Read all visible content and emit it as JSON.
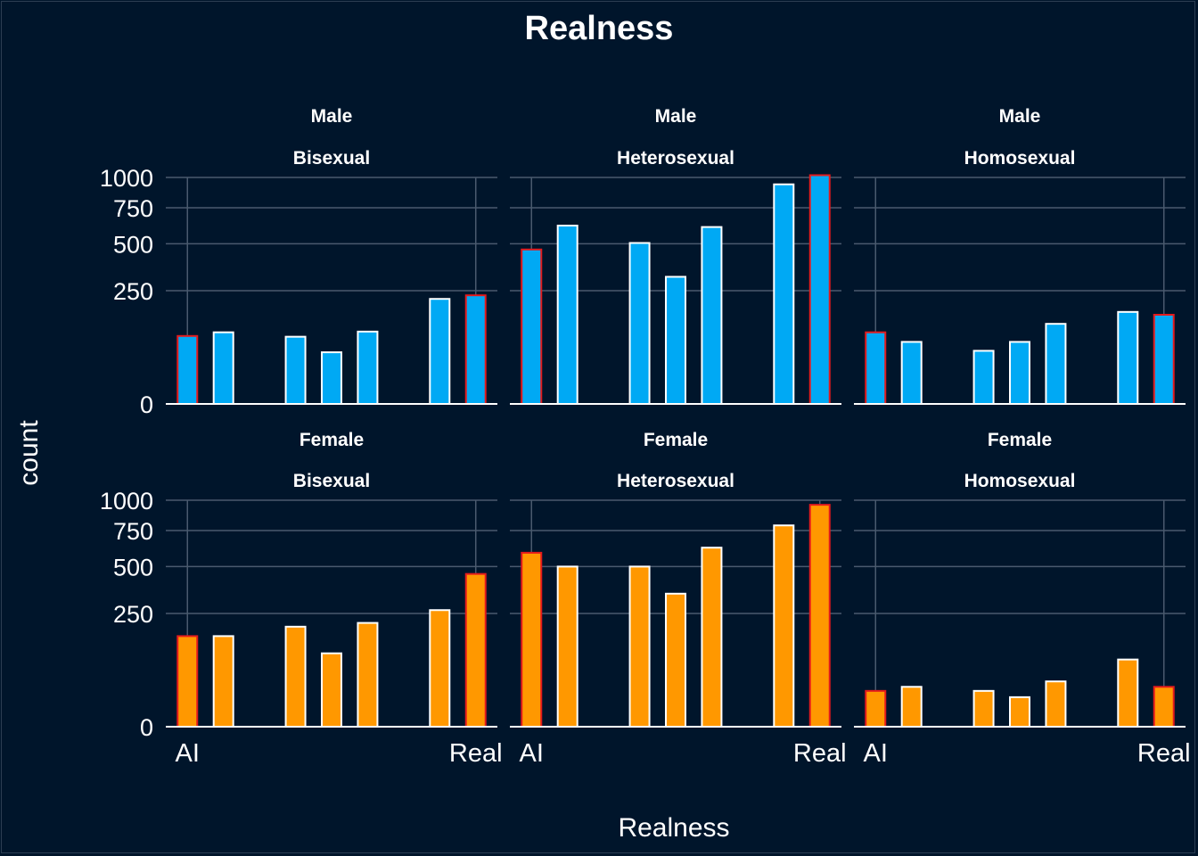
{
  "chart_data": {
    "type": "bar",
    "title": "Realness",
    "xlabel": "Realness",
    "ylabel": "count",
    "y_scale": "sqrt",
    "ylim": [
      0,
      1000
    ],
    "y_ticks": [
      0,
      250,
      500,
      750,
      1000
    ],
    "x_tick_labels": [
      "AI",
      "Real"
    ],
    "x_positions": [
      1,
      2,
      4,
      5,
      6,
      7,
      9,
      10
    ],
    "grid": true,
    "legend": "none",
    "colors": {
      "background": "#00152b",
      "male_fill": "#00a9f4",
      "female_fill": "#ff9800",
      "outline_default": "#ffffff",
      "outline_highlight": "#e41a1c",
      "grid": "#4a5a6e"
    },
    "panels": [
      {
        "gender": "Male",
        "orientation": "Bisexual",
        "bars": [
          {
            "x": 1,
            "value": 90,
            "highlight": true
          },
          {
            "x": 2,
            "value": 100
          },
          {
            "x": 4,
            "value": 88
          },
          {
            "x": 5,
            "value": 52
          },
          {
            "x": 6,
            "value": 102
          },
          {
            "x": 8,
            "value": 215
          },
          {
            "x": 9,
            "value": 230,
            "highlight": true
          }
        ]
      },
      {
        "gender": "Male",
        "orientation": "Heterosexual",
        "bars": [
          {
            "x": 1,
            "value": 465,
            "highlight": true
          },
          {
            "x": 2,
            "value": 620
          },
          {
            "x": 4,
            "value": 505
          },
          {
            "x": 5,
            "value": 315
          },
          {
            "x": 6,
            "value": 610
          },
          {
            "x": 8,
            "value": 940
          },
          {
            "x": 9,
            "value": 1020,
            "highlight": true
          }
        ]
      },
      {
        "gender": "Male",
        "orientation": "Homosexual",
        "bars": [
          {
            "x": 1,
            "value": 100,
            "highlight": true
          },
          {
            "x": 2,
            "value": 75
          },
          {
            "x": 4,
            "value": 55
          },
          {
            "x": 5,
            "value": 75
          },
          {
            "x": 6,
            "value": 125
          },
          {
            "x": 8,
            "value": 165
          },
          {
            "x": 9,
            "value": 155,
            "highlight": true
          }
        ]
      },
      {
        "gender": "Female",
        "orientation": "Bisexual",
        "bars": [
          {
            "x": 1,
            "value": 160,
            "highlight": true
          },
          {
            "x": 2,
            "value": 160
          },
          {
            "x": 4,
            "value": 195
          },
          {
            "x": 5,
            "value": 105
          },
          {
            "x": 6,
            "value": 210
          },
          {
            "x": 8,
            "value": 265
          },
          {
            "x": 9,
            "value": 455,
            "highlight": true
          }
        ]
      },
      {
        "gender": "Female",
        "orientation": "Heterosexual",
        "bars": [
          {
            "x": 1,
            "value": 590,
            "highlight": true
          },
          {
            "x": 2,
            "value": 500
          },
          {
            "x": 4,
            "value": 500
          },
          {
            "x": 5,
            "value": 345
          },
          {
            "x": 6,
            "value": 625
          },
          {
            "x": 8,
            "value": 790
          },
          {
            "x": 9,
            "value": 960,
            "highlight": true
          }
        ]
      },
      {
        "gender": "Female",
        "orientation": "Homosexual",
        "bars": [
          {
            "x": 1,
            "value": 25,
            "highlight": true
          },
          {
            "x": 2,
            "value": 31
          },
          {
            "x": 4,
            "value": 25
          },
          {
            "x": 5,
            "value": 17
          },
          {
            "x": 6,
            "value": 40
          },
          {
            "x": 8,
            "value": 88
          },
          {
            "x": 9,
            "value": 31,
            "highlight": true
          }
        ]
      }
    ]
  }
}
